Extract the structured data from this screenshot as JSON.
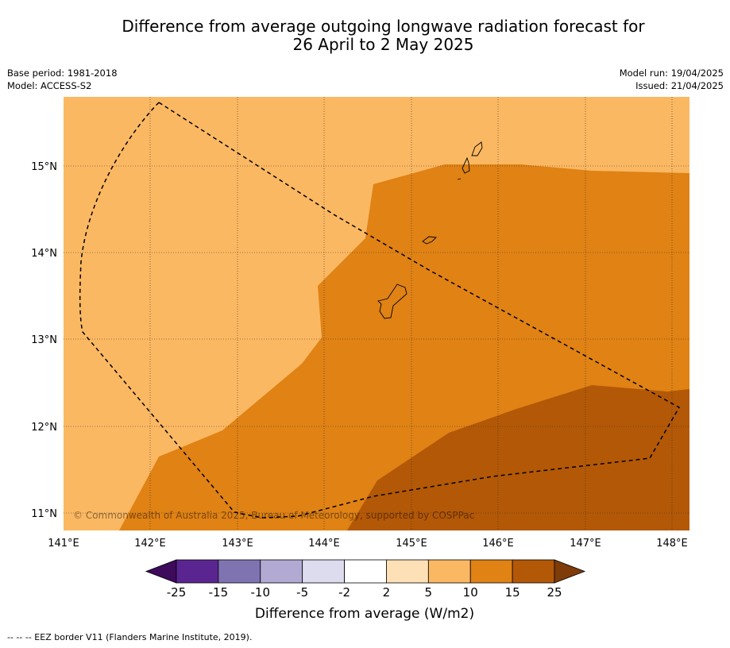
{
  "title": {
    "line1": "Difference from average outgoing longwave radiation forecast for",
    "line2": "26 April to 2 May 2025"
  },
  "meta_left": {
    "base_period": "Base period: 1981-2018",
    "model": "Model: ACCESS-S2"
  },
  "meta_right": {
    "model_run": "Model run: 19/04/2025",
    "issued": "Issued: 21/04/2025"
  },
  "copyright": "© Commonwealth of Australia 2025, Bureau of Meteorology, supported by COSPPac",
  "colorbar": {
    "label": "Difference from average (W/m2)",
    "ticks": [
      "-25",
      "-15",
      "-10",
      "-5",
      "-2",
      "2",
      "5",
      "10",
      "15",
      "25"
    ],
    "colors": [
      "#3d0a5c",
      "#5a2590",
      "#8073b2",
      "#b2aad3",
      "#dcdcee",
      "#ffffff",
      "#fde0b5",
      "#fbb862",
      "#e08214",
      "#b35806",
      "#7f3b08"
    ]
  },
  "footer": "--  --  -- EEZ border V11 (Flanders Marine Institute, 2019).",
  "chart_data": {
    "type": "map",
    "x_ticks": [
      "141°E",
      "142°E",
      "143°E",
      "144°E",
      "145°E",
      "146°E",
      "147°E",
      "148°E"
    ],
    "y_ticks": [
      "15°N",
      "14°N",
      "13°N",
      "12°N",
      "11°N"
    ],
    "xlim": [
      141,
      148.2
    ],
    "ylim": [
      10.8,
      15.8
    ],
    "fill_levels": {
      "base": "5 to 10",
      "mid": "10 to 15",
      "high": "15 to 25"
    }
  }
}
